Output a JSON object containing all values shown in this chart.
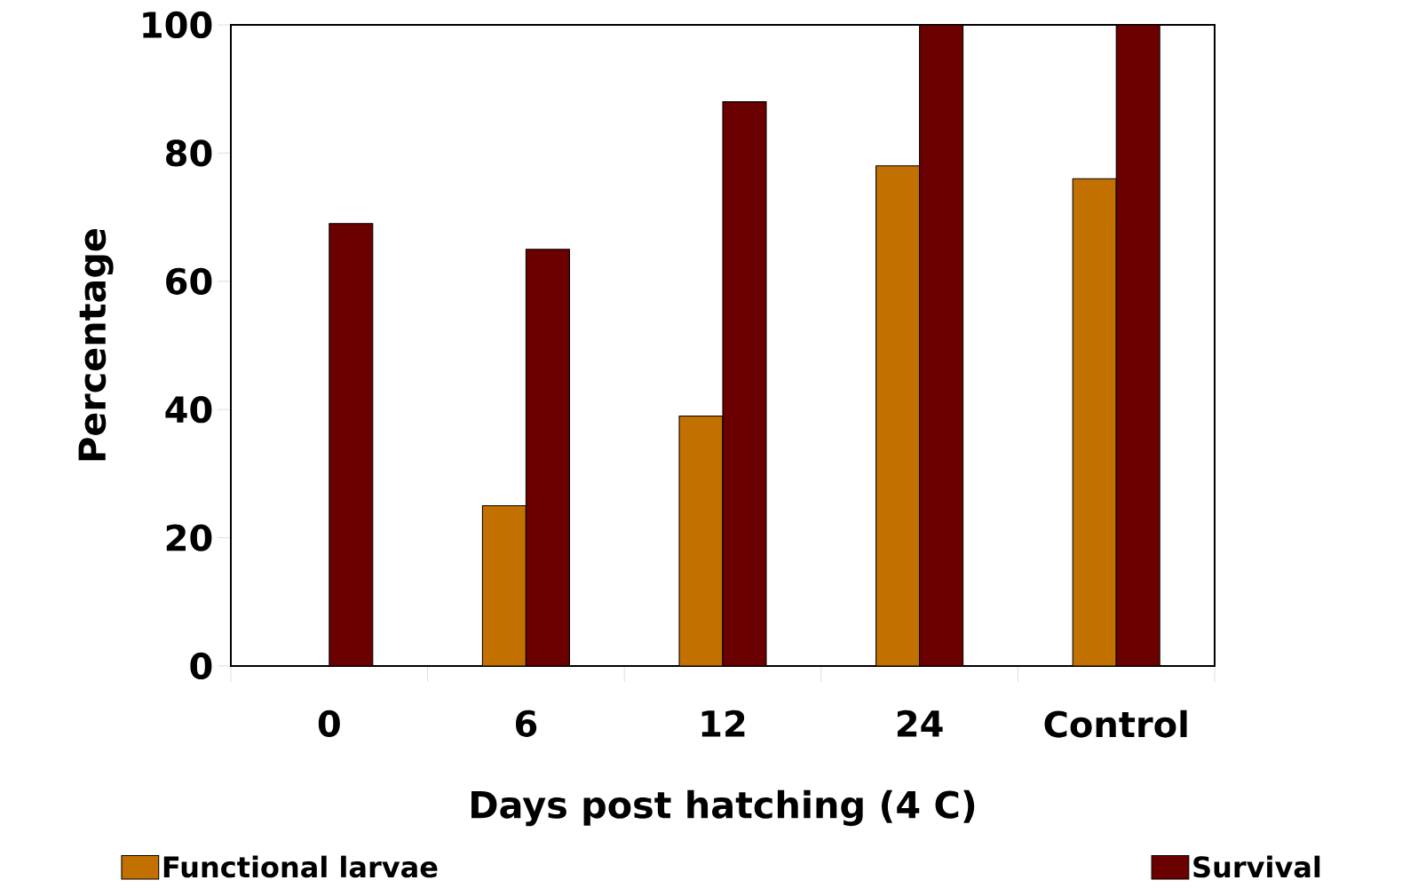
{
  "chart_data": {
    "type": "bar",
    "xlabel": "Days post hatching (4 C)",
    "ylabel": "Percentage",
    "categories": [
      "0",
      "6",
      "12",
      "24",
      "Control"
    ],
    "series": [
      {
        "name": "Functional larvae",
        "color": "#c27000",
        "values": [
          null,
          25,
          39,
          78,
          76
        ]
      },
      {
        "name": "Survival",
        "color": "#6a0000",
        "values": [
          69,
          65,
          88,
          100,
          100
        ]
      }
    ],
    "ylim": [
      0,
      100
    ],
    "yticks": [
      0,
      20,
      40,
      60,
      80,
      100
    ],
    "grid": false,
    "legend": "bottom"
  }
}
